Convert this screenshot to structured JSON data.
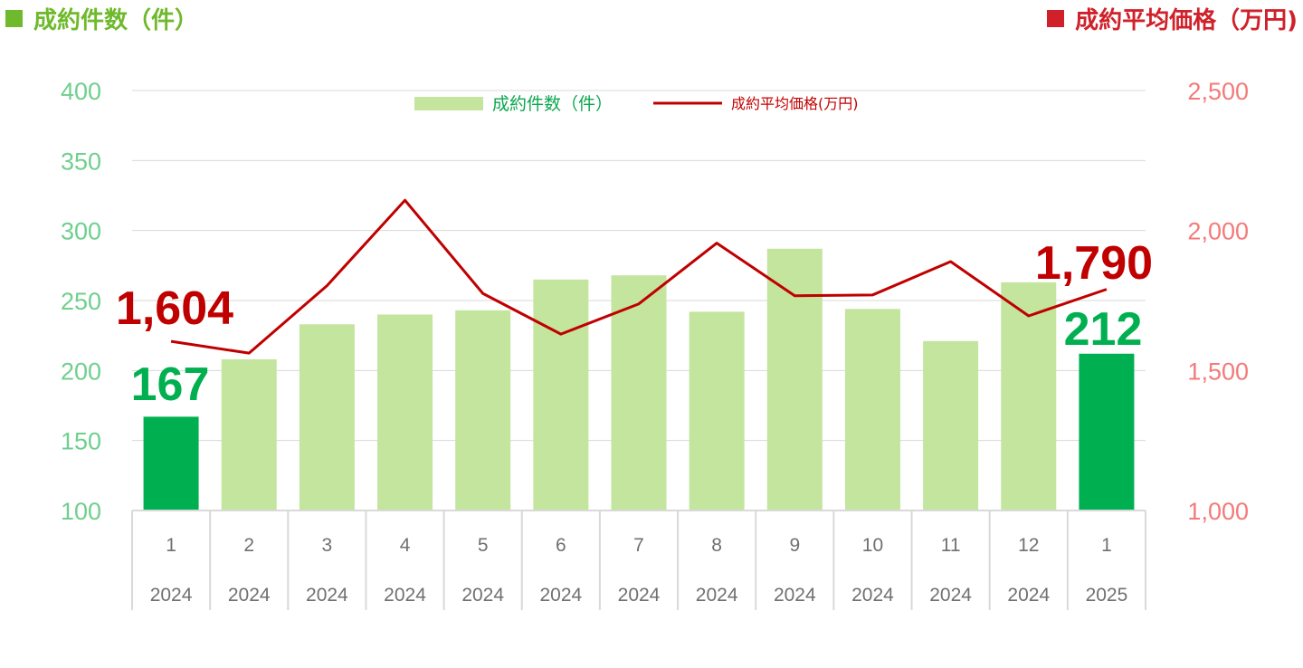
{
  "header": {
    "left_title": "成約件数（件）",
    "right_title": "成約平均価格（万円)"
  },
  "legend": {
    "bar_label": "成約件数（件）",
    "line_label": "成約平均価格(万円)"
  },
  "colors": {
    "bar": "#c3e59e",
    "bar_highlight": "#00b050",
    "line": "#c00000",
    "left_axis": "#6fcf8e",
    "right_axis": "#f47a7a",
    "grid": "#d9d9d9"
  },
  "chart_data": {
    "type": "bar",
    "categories": [
      "1",
      "2",
      "3",
      "4",
      "5",
      "6",
      "7",
      "8",
      "9",
      "10",
      "11",
      "12",
      "1"
    ],
    "years": [
      "2024",
      "2024",
      "2024",
      "2024",
      "2024",
      "2024",
      "2024",
      "2024",
      "2024",
      "2024",
      "2024",
      "2024",
      "2025"
    ],
    "series": [
      {
        "name": "成約件数（件）",
        "type": "bar",
        "axis": "left",
        "values": [
          167,
          208,
          233,
          240,
          243,
          265,
          268,
          242,
          287,
          244,
          221,
          263,
          212
        ],
        "highlight": [
          0,
          12
        ]
      },
      {
        "name": "成約平均価格(万円)",
        "type": "line",
        "axis": "right",
        "values": [
          1604,
          1562,
          1803,
          2108,
          1775,
          1630,
          1738,
          1955,
          1767,
          1770,
          1889,
          1695,
          1790
        ]
      }
    ],
    "y_left": {
      "min": 100,
      "max": 400,
      "ticks": [
        "400",
        "350",
        "300",
        "250",
        "200",
        "150",
        "100"
      ]
    },
    "y_right": {
      "min": 1000,
      "max": 2500,
      "ticks": [
        "2,500",
        "2,000",
        "1,500",
        "1,000"
      ]
    },
    "data_labels": {
      "first_bar": "167",
      "last_bar": "212",
      "first_line": "1,604",
      "last_line": "1,790"
    },
    "grid": true,
    "legend_position": "top-center"
  }
}
